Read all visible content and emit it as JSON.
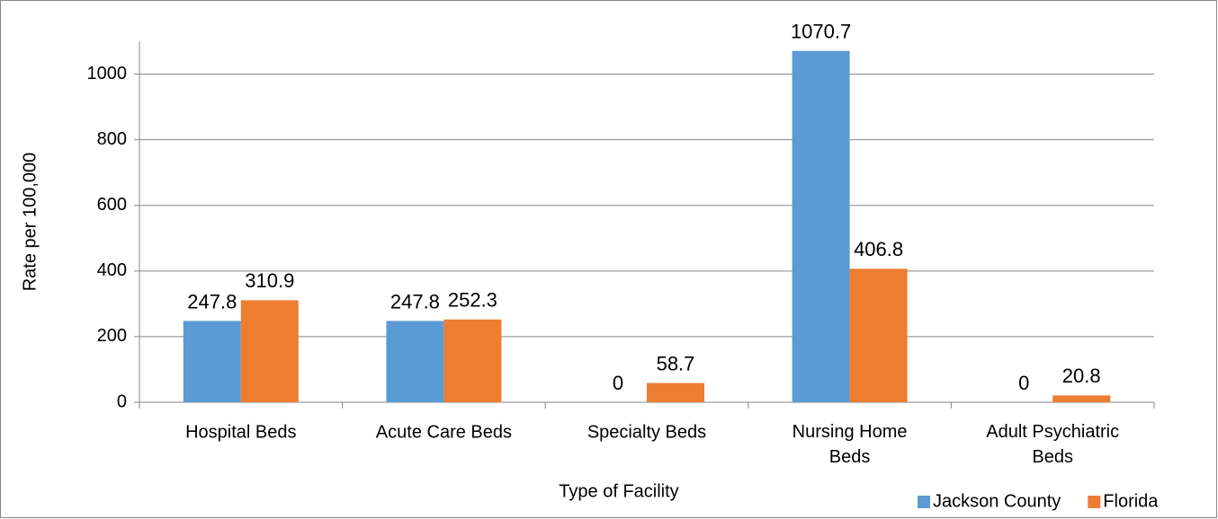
{
  "chart_data": {
    "type": "bar",
    "y_label": "Rate per 100,000",
    "x_label": "Type of Facility",
    "categories": [
      "Hospital Beds",
      "Acute Care Beds",
      "Specialty Beds",
      "Nursing Home Beds",
      "Adult Psychiatric Beds"
    ],
    "series": [
      {
        "name": "Jackson County",
        "color": "#5b9bd5",
        "values": [
          247.8,
          247.8,
          0,
          1070.7,
          0
        ]
      },
      {
        "name": "Florida",
        "color": "#ed7d31",
        "values": [
          310.9,
          252.3,
          58.7,
          406.8,
          20.8
        ]
      }
    ],
    "ylim": [
      0,
      1100
    ],
    "yticks": [
      0,
      200,
      400,
      600,
      800,
      1000
    ],
    "grid": true,
    "legend": "bottom-right"
  }
}
